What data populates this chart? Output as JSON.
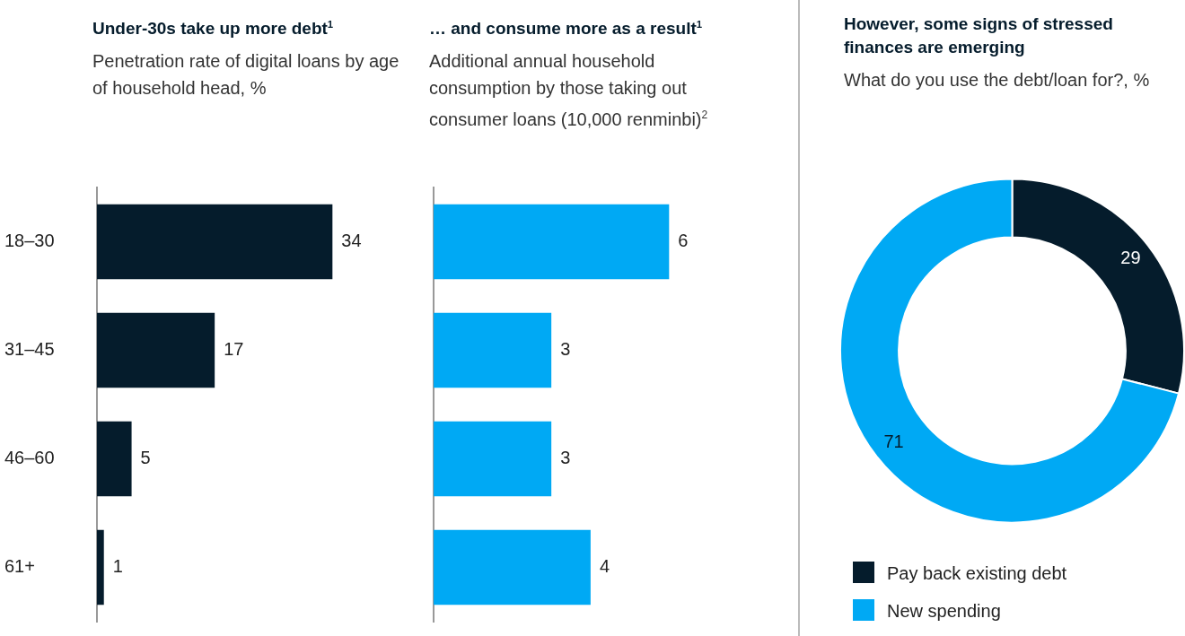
{
  "chart_data": [
    {
      "type": "bar",
      "orientation": "horizontal",
      "title": "Under-30s take up more debt$^{1}$",
      "subtitle": "Penetration rate of digital loans by age of household head, %",
      "categories": [
        "18–30",
        "31–45",
        "46–60",
        "61+"
      ],
      "values": [
        34,
        17,
        5,
        1
      ],
      "color": "#051c2c",
      "data_labels": true,
      "tick_labels": "y"
    },
    {
      "type": "bar",
      "orientation": "horizontal",
      "title": "… and consume more as a result$^{1}$",
      "subtitle": "Additional annual household consumption by those taking out consumer loans (10,000 renminbi)$^{2}$",
      "categories": [
        null,
        null,
        null,
        null
      ],
      "values": [
        6,
        3,
        3,
        4
      ],
      "color": "#00a9f4",
      "data_labels": true
    },
    {
      "type": "donut",
      "title": "However, some signs of stressed finances are emerging",
      "subtitle": "What do you use the debt/loan for?, %",
      "categories": [
        "Pay back existing debt",
        "New spending"
      ],
      "values": [
        29,
        71
      ],
      "colors": [
        "#051c2c",
        "#00a9f4"
      ],
      "data_labels": true,
      "legend": "bottom"
    }
  ]
}
